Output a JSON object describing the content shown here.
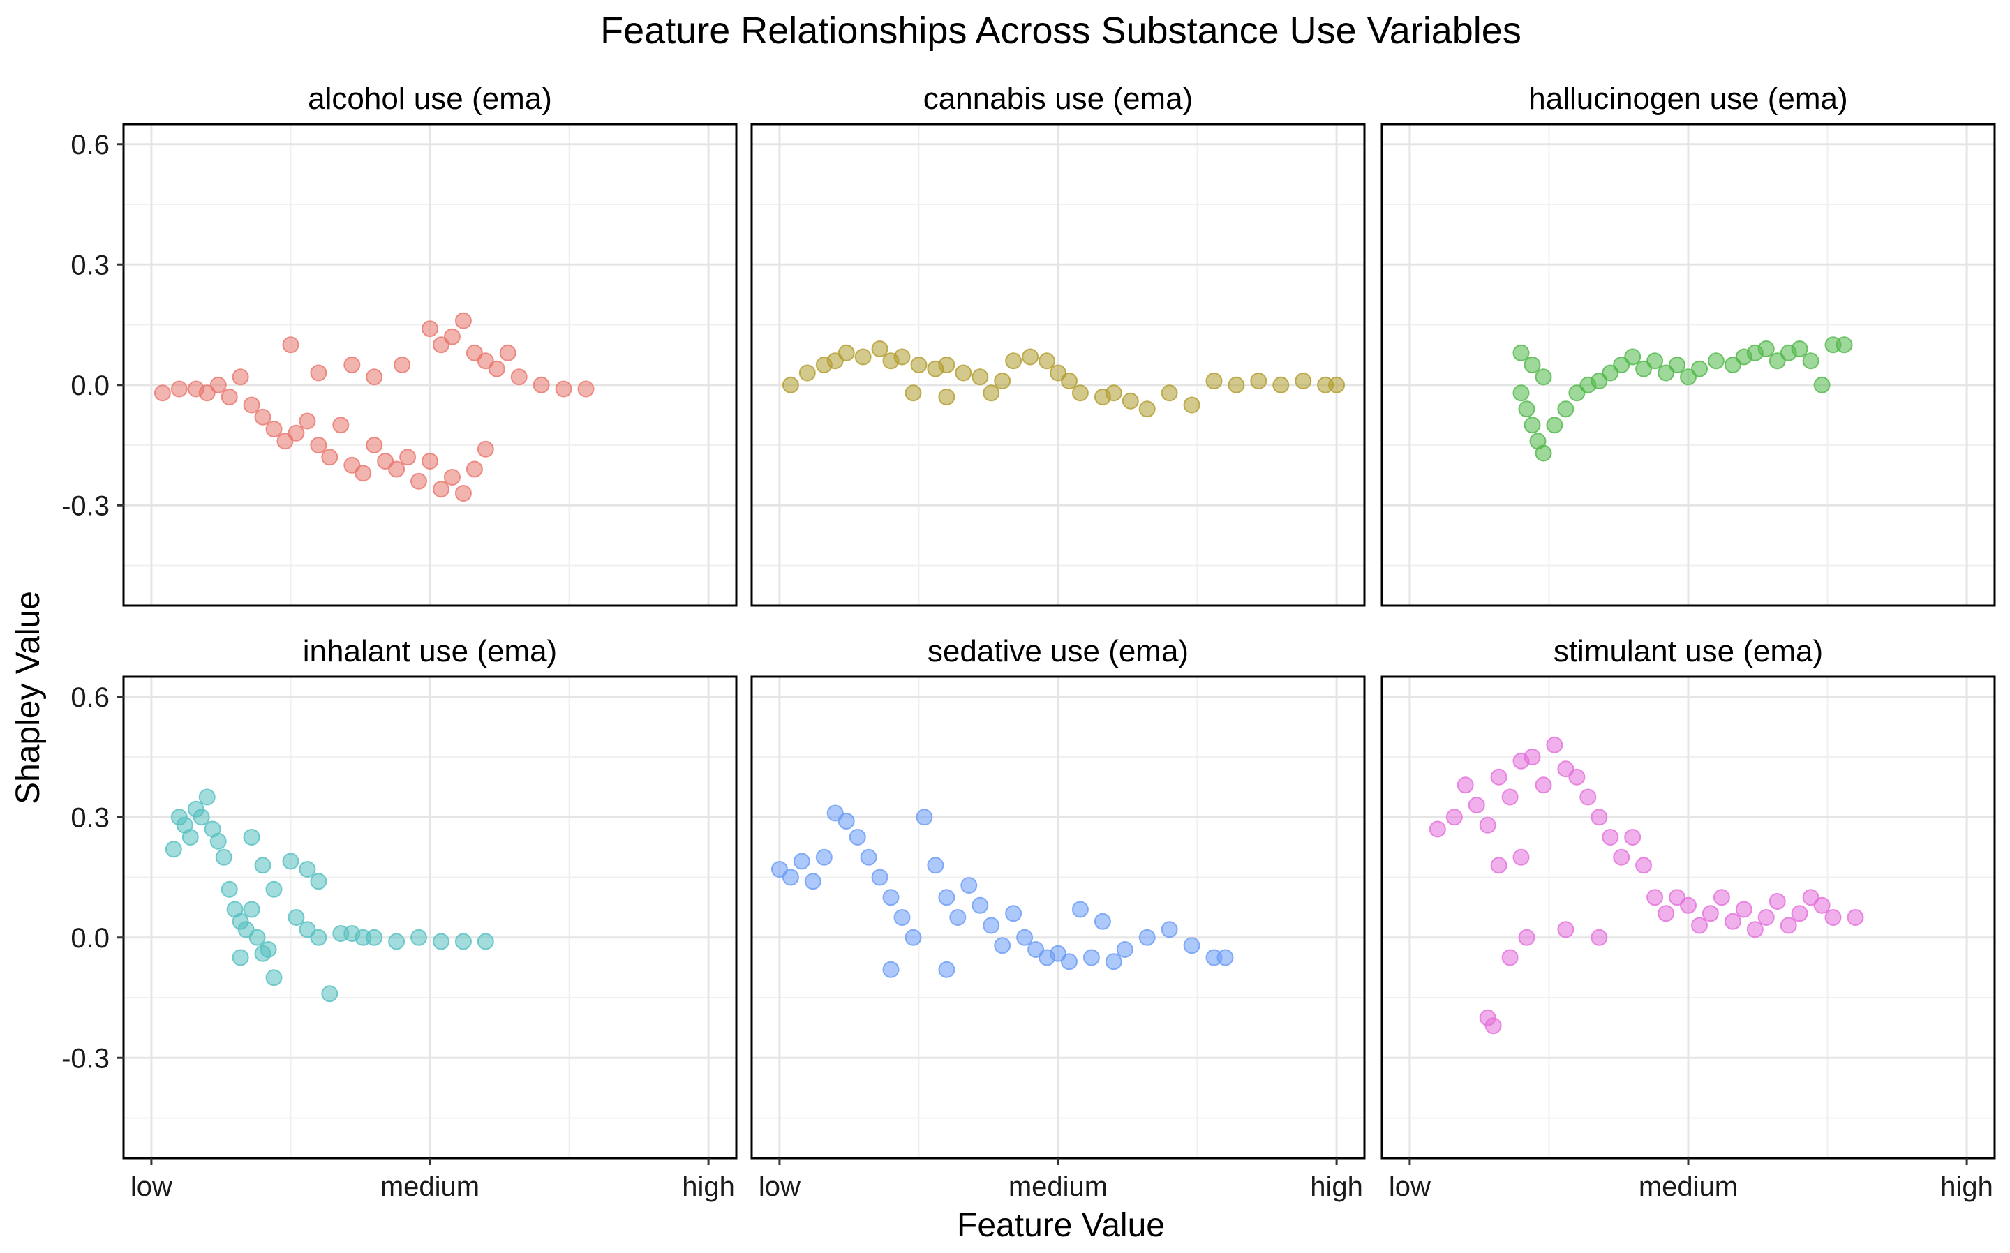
{
  "chart_data": {
    "type": "scatter",
    "title": "Feature Relationships Across Substance Use Variables",
    "xlabel": "Feature Value",
    "ylabel": "Shapley Value",
    "x_tick_labels": [
      "low",
      "medium",
      "high"
    ],
    "x_tick_values": [
      0,
      0.5,
      1
    ],
    "y_ticks": [
      -0.3,
      0.0,
      0.3,
      0.6
    ],
    "y_tick_labels": [
      "-0.3",
      "0.0",
      "0.3",
      "0.6"
    ],
    "xlim": [
      -0.05,
      1.05
    ],
    "ylim": [
      -0.55,
      0.65
    ],
    "grid": true,
    "legend": "none",
    "panels": [
      {
        "name": "alcohol use (ema)",
        "color": "#E8766D",
        "points": [
          [
            0.02,
            -0.02
          ],
          [
            0.05,
            -0.01
          ],
          [
            0.08,
            -0.01
          ],
          [
            0.1,
            -0.02
          ],
          [
            0.12,
            0.0
          ],
          [
            0.14,
            -0.03
          ],
          [
            0.16,
            0.02
          ],
          [
            0.18,
            -0.05
          ],
          [
            0.2,
            -0.08
          ],
          [
            0.22,
            -0.11
          ],
          [
            0.24,
            -0.14
          ],
          [
            0.26,
            -0.12
          ],
          [
            0.28,
            -0.09
          ],
          [
            0.3,
            -0.15
          ],
          [
            0.32,
            -0.18
          ],
          [
            0.34,
            -0.1
          ],
          [
            0.36,
            -0.2
          ],
          [
            0.38,
            -0.22
          ],
          [
            0.4,
            -0.15
          ],
          [
            0.42,
            -0.19
          ],
          [
            0.44,
            -0.21
          ],
          [
            0.46,
            -0.18
          ],
          [
            0.48,
            -0.24
          ],
          [
            0.5,
            -0.19
          ],
          [
            0.52,
            -0.26
          ],
          [
            0.54,
            -0.23
          ],
          [
            0.56,
            -0.27
          ],
          [
            0.58,
            -0.21
          ],
          [
            0.6,
            -0.16
          ],
          [
            0.5,
            0.14
          ],
          [
            0.52,
            0.1
          ],
          [
            0.54,
            0.12
          ],
          [
            0.56,
            0.16
          ],
          [
            0.58,
            0.08
          ],
          [
            0.6,
            0.06
          ],
          [
            0.62,
            0.04
          ],
          [
            0.64,
            0.08
          ],
          [
            0.66,
            0.02
          ],
          [
            0.7,
            0.0
          ],
          [
            0.74,
            -0.01
          ],
          [
            0.78,
            -0.01
          ],
          [
            0.36,
            0.05
          ],
          [
            0.4,
            0.02
          ],
          [
            0.3,
            0.03
          ],
          [
            0.25,
            0.1
          ],
          [
            0.45,
            0.05
          ]
        ]
      },
      {
        "name": "cannabis use (ema)",
        "color": "#B09C2E",
        "points": [
          [
            0.02,
            0.0
          ],
          [
            0.05,
            0.03
          ],
          [
            0.08,
            0.05
          ],
          [
            0.1,
            0.06
          ],
          [
            0.12,
            0.08
          ],
          [
            0.15,
            0.07
          ],
          [
            0.18,
            0.09
          ],
          [
            0.2,
            0.06
          ],
          [
            0.22,
            0.07
          ],
          [
            0.25,
            0.05
          ],
          [
            0.28,
            0.04
          ],
          [
            0.3,
            0.05
          ],
          [
            0.33,
            0.03
          ],
          [
            0.36,
            0.02
          ],
          [
            0.4,
            0.01
          ],
          [
            0.42,
            0.06
          ],
          [
            0.45,
            0.07
          ],
          [
            0.48,
            0.06
          ],
          [
            0.5,
            0.03
          ],
          [
            0.52,
            0.01
          ],
          [
            0.54,
            -0.02
          ],
          [
            0.58,
            -0.03
          ],
          [
            0.6,
            -0.02
          ],
          [
            0.63,
            -0.04
          ],
          [
            0.66,
            -0.06
          ],
          [
            0.7,
            -0.02
          ],
          [
            0.74,
            -0.05
          ],
          [
            0.78,
            0.01
          ],
          [
            0.82,
            0.0
          ],
          [
            0.86,
            0.01
          ],
          [
            0.9,
            0.0
          ],
          [
            0.94,
            0.01
          ],
          [
            0.98,
            0.0
          ],
          [
            1.0,
            0.0
          ],
          [
            0.24,
            -0.02
          ],
          [
            0.3,
            -0.03
          ],
          [
            0.38,
            -0.02
          ]
        ]
      },
      {
        "name": "hallucinogen use (ema)",
        "color": "#50B848",
        "points": [
          [
            0.2,
            0.08
          ],
          [
            0.22,
            0.05
          ],
          [
            0.24,
            0.02
          ],
          [
            0.2,
            -0.02
          ],
          [
            0.21,
            -0.06
          ],
          [
            0.22,
            -0.1
          ],
          [
            0.23,
            -0.14
          ],
          [
            0.24,
            -0.17
          ],
          [
            0.26,
            -0.1
          ],
          [
            0.28,
            -0.06
          ],
          [
            0.3,
            -0.02
          ],
          [
            0.32,
            0.0
          ],
          [
            0.34,
            0.01
          ],
          [
            0.36,
            0.03
          ],
          [
            0.38,
            0.05
          ],
          [
            0.4,
            0.07
          ],
          [
            0.42,
            0.04
          ],
          [
            0.44,
            0.06
          ],
          [
            0.46,
            0.03
          ],
          [
            0.48,
            0.05
          ],
          [
            0.5,
            0.02
          ],
          [
            0.52,
            0.04
          ],
          [
            0.55,
            0.06
          ],
          [
            0.58,
            0.05
          ],
          [
            0.6,
            0.07
          ],
          [
            0.62,
            0.08
          ],
          [
            0.64,
            0.09
          ],
          [
            0.66,
            0.06
          ],
          [
            0.68,
            0.08
          ],
          [
            0.7,
            0.09
          ],
          [
            0.72,
            0.06
          ],
          [
            0.74,
            0.0
          ],
          [
            0.76,
            0.1
          ],
          [
            0.78,
            0.1
          ]
        ]
      },
      {
        "name": "inhalant use (ema)",
        "color": "#55BFC0",
        "points": [
          [
            0.04,
            0.22
          ],
          [
            0.05,
            0.3
          ],
          [
            0.06,
            0.28
          ],
          [
            0.07,
            0.25
          ],
          [
            0.08,
            0.32
          ],
          [
            0.09,
            0.3
          ],
          [
            0.1,
            0.35
          ],
          [
            0.11,
            0.27
          ],
          [
            0.12,
            0.24
          ],
          [
            0.13,
            0.2
          ],
          [
            0.14,
            0.12
          ],
          [
            0.15,
            0.07
          ],
          [
            0.16,
            0.04
          ],
          [
            0.17,
            0.02
          ],
          [
            0.18,
            0.07
          ],
          [
            0.19,
            0.0
          ],
          [
            0.2,
            -0.04
          ],
          [
            0.21,
            -0.03
          ],
          [
            0.22,
            -0.1
          ],
          [
            0.16,
            -0.05
          ],
          [
            0.18,
            0.25
          ],
          [
            0.2,
            0.18
          ],
          [
            0.22,
            0.12
          ],
          [
            0.25,
            0.19
          ],
          [
            0.28,
            0.17
          ],
          [
            0.3,
            0.14
          ],
          [
            0.26,
            0.05
          ],
          [
            0.28,
            0.02
          ],
          [
            0.3,
            0.0
          ],
          [
            0.32,
            -0.14
          ],
          [
            0.34,
            0.01
          ],
          [
            0.36,
            0.01
          ],
          [
            0.38,
            0.0
          ],
          [
            0.4,
            0.0
          ],
          [
            0.44,
            -0.01
          ],
          [
            0.48,
            0.0
          ],
          [
            0.52,
            -0.01
          ],
          [
            0.56,
            -0.01
          ],
          [
            0.6,
            -0.01
          ]
        ]
      },
      {
        "name": "sedative use (ema)",
        "color": "#6A9BF5",
        "points": [
          [
            0.0,
            0.17
          ],
          [
            0.02,
            0.15
          ],
          [
            0.04,
            0.19
          ],
          [
            0.06,
            0.14
          ],
          [
            0.08,
            0.2
          ],
          [
            0.1,
            0.31
          ],
          [
            0.12,
            0.29
          ],
          [
            0.14,
            0.25
          ],
          [
            0.16,
            0.2
          ],
          [
            0.18,
            0.15
          ],
          [
            0.2,
            0.1
          ],
          [
            0.22,
            0.05
          ],
          [
            0.24,
            0.0
          ],
          [
            0.26,
            0.3
          ],
          [
            0.28,
            0.18
          ],
          [
            0.3,
            0.1
          ],
          [
            0.32,
            0.05
          ],
          [
            0.34,
            0.13
          ],
          [
            0.36,
            0.08
          ],
          [
            0.38,
            0.03
          ],
          [
            0.4,
            -0.02
          ],
          [
            0.42,
            0.06
          ],
          [
            0.44,
            0.0
          ],
          [
            0.46,
            -0.03
          ],
          [
            0.48,
            -0.05
          ],
          [
            0.5,
            -0.04
          ],
          [
            0.52,
            -0.06
          ],
          [
            0.54,
            0.07
          ],
          [
            0.56,
            -0.05
          ],
          [
            0.58,
            0.04
          ],
          [
            0.6,
            -0.06
          ],
          [
            0.62,
            -0.03
          ],
          [
            0.66,
            0.0
          ],
          [
            0.7,
            0.02
          ],
          [
            0.74,
            -0.02
          ],
          [
            0.78,
            -0.05
          ],
          [
            0.8,
            -0.05
          ],
          [
            0.2,
            -0.08
          ],
          [
            0.3,
            -0.08
          ]
        ]
      },
      {
        "name": "stimulant use (ema)",
        "color": "#E36FDB",
        "points": [
          [
            0.05,
            0.27
          ],
          [
            0.08,
            0.3
          ],
          [
            0.1,
            0.38
          ],
          [
            0.12,
            0.33
          ],
          [
            0.14,
            0.28
          ],
          [
            0.16,
            0.4
          ],
          [
            0.18,
            0.35
          ],
          [
            0.2,
            0.44
          ],
          [
            0.22,
            0.45
          ],
          [
            0.24,
            0.38
          ],
          [
            0.26,
            0.48
          ],
          [
            0.28,
            0.42
          ],
          [
            0.3,
            0.4
          ],
          [
            0.32,
            0.35
          ],
          [
            0.34,
            0.3
          ],
          [
            0.36,
            0.25
          ],
          [
            0.38,
            0.2
          ],
          [
            0.4,
            0.25
          ],
          [
            0.42,
            0.18
          ],
          [
            0.44,
            0.1
          ],
          [
            0.46,
            0.06
          ],
          [
            0.48,
            0.1
          ],
          [
            0.5,
            0.08
          ],
          [
            0.52,
            0.03
          ],
          [
            0.54,
            0.06
          ],
          [
            0.56,
            0.1
          ],
          [
            0.58,
            0.04
          ],
          [
            0.6,
            0.07
          ],
          [
            0.62,
            0.02
          ],
          [
            0.64,
            0.05
          ],
          [
            0.66,
            0.09
          ],
          [
            0.68,
            0.03
          ],
          [
            0.7,
            0.06
          ],
          [
            0.72,
            0.1
          ],
          [
            0.74,
            0.08
          ],
          [
            0.76,
            0.05
          ],
          [
            0.8,
            0.05
          ],
          [
            0.2,
            0.2
          ],
          [
            0.16,
            0.18
          ],
          [
            0.14,
            -0.2
          ],
          [
            0.15,
            -0.22
          ],
          [
            0.18,
            -0.05
          ],
          [
            0.21,
            0.0
          ],
          [
            0.28,
            0.02
          ],
          [
            0.34,
            0.0
          ]
        ]
      }
    ]
  }
}
